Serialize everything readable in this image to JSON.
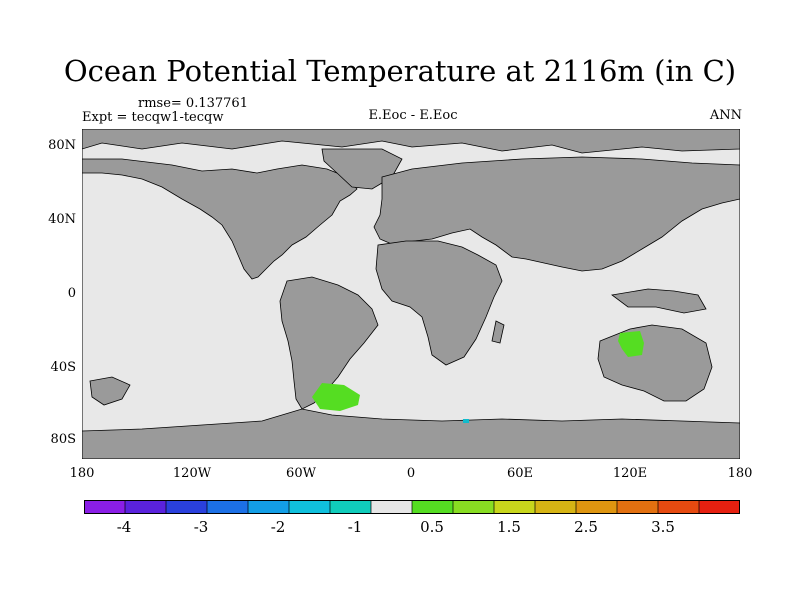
{
  "title": "Ocean Potential Temperature at 2116m (in C)",
  "rmse_label": "rmse= 0.137761",
  "expt_label": "Expt = tecqw1-tecqw",
  "center_label": "E.Eoc - E.Eoc",
  "season_label": "ANN",
  "map": {
    "lat_ticks": [
      "80N",
      "40N",
      "0",
      "40S",
      "80S"
    ],
    "lon_ticks": [
      "180",
      "120W",
      "60W",
      "0",
      "60E",
      "120E",
      "180"
    ],
    "colors": {
      "ocean": "#e8e8e8",
      "land": "#9a9a9a",
      "coast": "#000000",
      "anomaly_pos": "#55dd22",
      "anomaly_neg": "#11bbcc"
    }
  },
  "colorbar": {
    "labels": [
      "-4",
      "-3",
      "-2",
      "-1",
      "0.5",
      "1.5",
      "2.5",
      "3.5"
    ],
    "colors": [
      "#8a1ee6",
      "#5a22dd",
      "#2a40dd",
      "#1c70e6",
      "#139ee6",
      "#10c0dd",
      "#10ccbb",
      "#e6e6e6",
      "#55dd22",
      "#88dd22",
      "#c8d61c",
      "#d6b414",
      "#de9510",
      "#e27010",
      "#e64a10",
      "#e62010"
    ]
  }
}
